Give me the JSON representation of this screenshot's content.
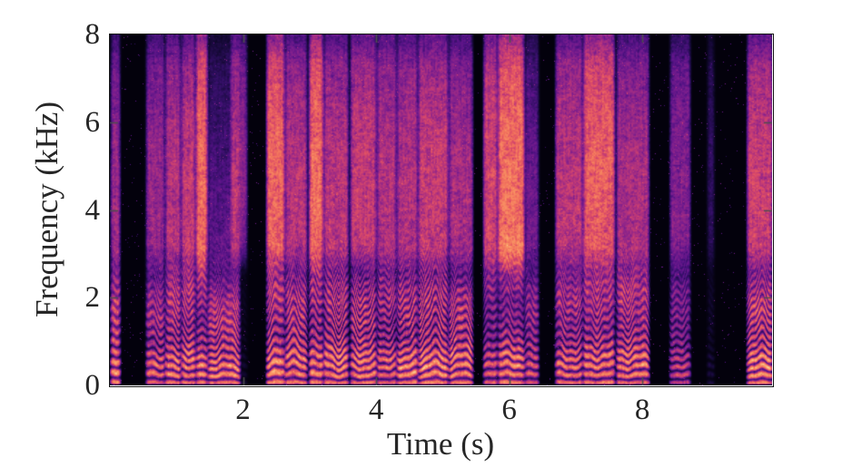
{
  "chart_data": {
    "type": "heatmap",
    "subtype": "speech-spectrogram",
    "title": "",
    "xlabel": "Time (s)",
    "ylabel": "Frequency (kHz)",
    "xlim": [
      0,
      9.95
    ],
    "ylim": [
      0,
      8
    ],
    "x_ticks": [
      2,
      4,
      6,
      8
    ],
    "y_ticks": [
      0,
      2,
      4,
      6,
      8
    ],
    "x_unit": "s",
    "y_unit": "kHz",
    "grid": false,
    "legend": null,
    "colormap": "magma",
    "colormap_stops": [
      [
        0.0,
        "#000004"
      ],
      [
        0.1,
        "#10072e"
      ],
      [
        0.2,
        "#2f0e61"
      ],
      [
        0.3,
        "#541285"
      ],
      [
        0.4,
        "#771c8d"
      ],
      [
        0.5,
        "#982886"
      ],
      [
        0.6,
        "#bc3778"
      ],
      [
        0.7,
        "#dc4c66"
      ],
      [
        0.8,
        "#f1705c"
      ],
      [
        0.9,
        "#fa9c65"
      ],
      [
        1.0,
        "#fcfdbf"
      ]
    ],
    "axis_color": "#262626",
    "tick_color": "#4d4d4d",
    "background": "#ffffff",
    "noise_seed": 7,
    "segments": [
      {
        "t0": 0.02,
        "t1": 0.15,
        "amp": 1.0,
        "voiced": 1.0,
        "hf": 0.35,
        "f0": 230,
        "chev": 0.2,
        "f1": 0.4,
        "f2": 1.8,
        "hx": 3.5,
        "ph": 0.3
      },
      {
        "t0": 0.55,
        "t1": 0.82,
        "amp": 0.78,
        "voiced": 0.9,
        "hf": 0.45,
        "f0": 210,
        "chev": 0.5,
        "f1": 0.5,
        "f2": 1.7,
        "hx": 3.5,
        "ph": 1.1
      },
      {
        "t0": 0.84,
        "t1": 1.06,
        "amp": 0.92,
        "voiced": 1.0,
        "hf": 0.5,
        "f0": 200,
        "chev": 0.6,
        "f1": 0.5,
        "f2": 2.0,
        "hx": 4.0,
        "ph": 2.0
      },
      {
        "t0": 1.08,
        "t1": 1.28,
        "amp": 0.95,
        "voiced": 1.0,
        "hf": 0.55,
        "f0": 195,
        "chev": 0.5,
        "f1": 0.6,
        "f2": 2.2,
        "hx": 4.0,
        "ph": 2.7
      },
      {
        "t0": 1.3,
        "t1": 1.46,
        "amp": 1.0,
        "voiced": 0.9,
        "hf": 0.9,
        "f0": 210,
        "chev": 0.3,
        "f1": 0.5,
        "f2": 2.5,
        "hx": 4.0,
        "ph": 3.4
      },
      {
        "t0": 1.48,
        "t1": 1.95,
        "amp": 0.85,
        "voiced": 1.0,
        "hf": 0.15,
        "f0": 185,
        "chev": 0.7,
        "f1": 0.4,
        "f2": 1.6,
        "hx": 3.5,
        "ph": 4.1
      },
      {
        "t0": 1.82,
        "t1": 2.06,
        "amp": 0.42,
        "voiced": 0.1,
        "hf": 0.85,
        "f0": 200,
        "chev": 0.0,
        "f1": 0.5,
        "f2": 2.0,
        "hx": 3.0,
        "ph": 4.8
      },
      {
        "t0": 2.36,
        "t1": 2.62,
        "amp": 1.0,
        "voiced": 1.0,
        "hf": 0.85,
        "f0": 215,
        "chev": 0.8,
        "f1": 0.5,
        "f2": 2.2,
        "hx": 4.5,
        "ph": 5.5
      },
      {
        "t0": 2.64,
        "t1": 2.96,
        "amp": 0.92,
        "voiced": 1.0,
        "hf": 0.5,
        "f0": 200,
        "chev": 0.9,
        "f1": 0.6,
        "f2": 1.9,
        "hx": 4.5,
        "ph": 6.2
      },
      {
        "t0": 3.0,
        "t1": 3.2,
        "amp": 1.0,
        "voiced": 0.95,
        "hf": 0.95,
        "f0": 210,
        "chev": 0.4,
        "f1": 0.5,
        "f2": 2.3,
        "hx": 5.0,
        "ph": 0.9
      },
      {
        "t0": 3.22,
        "t1": 3.58,
        "amp": 0.95,
        "voiced": 1.0,
        "hf": 0.5,
        "f0": 195,
        "chev": 0.9,
        "f1": 0.6,
        "f2": 2.0,
        "hx": 5.5,
        "ph": 1.6
      },
      {
        "t0": 3.62,
        "t1": 4.0,
        "amp": 0.9,
        "voiced": 1.0,
        "hf": 0.6,
        "f0": 190,
        "chev": 0.7,
        "f1": 0.5,
        "f2": 1.8,
        "hx": 5.5,
        "ph": 2.3
      },
      {
        "t0": 4.02,
        "t1": 4.3,
        "amp": 0.85,
        "voiced": 0.9,
        "hf": 0.55,
        "f0": 200,
        "chev": 0.6,
        "f1": 0.6,
        "f2": 2.1,
        "hx": 5.0,
        "ph": 3.0
      },
      {
        "t0": 4.32,
        "t1": 4.62,
        "amp": 0.92,
        "voiced": 1.0,
        "hf": 0.5,
        "f0": 205,
        "chev": 0.7,
        "f1": 0.5,
        "f2": 1.9,
        "hx": 5.5,
        "ph": 3.7
      },
      {
        "t0": 4.64,
        "t1": 5.08,
        "amp": 1.0,
        "voiced": 1.0,
        "hf": 0.55,
        "f0": 195,
        "chev": 1.0,
        "f1": 0.5,
        "f2": 2.0,
        "hx": 6.0,
        "ph": 4.4
      },
      {
        "t0": 5.1,
        "t1": 5.45,
        "amp": 0.9,
        "voiced": 1.0,
        "hf": 0.45,
        "f0": 190,
        "chev": 0.8,
        "f1": 0.6,
        "f2": 1.7,
        "hx": 5.0,
        "ph": 5.1
      },
      {
        "t0": 5.62,
        "t1": 5.82,
        "amp": 0.85,
        "voiced": 0.8,
        "hf": 0.75,
        "f0": 205,
        "chev": 0.4,
        "f1": 0.5,
        "f2": 2.4,
        "hx": 4.0,
        "ph": 5.8
      },
      {
        "t0": 5.84,
        "t1": 6.22,
        "amp": 1.0,
        "voiced": 0.9,
        "hf": 0.95,
        "f0": 210,
        "chev": 0.5,
        "f1": 0.6,
        "f2": 2.8,
        "hx": 4.0,
        "ph": 6.5
      },
      {
        "t0": 6.24,
        "t1": 6.44,
        "amp": 0.7,
        "voiced": 0.9,
        "hf": 0.3,
        "f0": 195,
        "chev": 0.5,
        "f1": 0.5,
        "f2": 1.8,
        "hx": 3.5,
        "ph": 0.6
      },
      {
        "t0": 6.7,
        "t1": 7.1,
        "amp": 0.82,
        "voiced": 0.95,
        "hf": 0.6,
        "f0": 200,
        "chev": 0.6,
        "f1": 0.5,
        "f2": 2.0,
        "hx": 4.0,
        "ph": 1.3
      },
      {
        "t0": 7.12,
        "t1": 7.58,
        "amp": 0.95,
        "voiced": 0.95,
        "hf": 0.85,
        "f0": 205,
        "chev": 0.5,
        "f1": 0.6,
        "f2": 2.2,
        "hx": 4.0,
        "ph": 2.0
      },
      {
        "t0": 7.62,
        "t1": 8.1,
        "amp": 0.9,
        "voiced": 1.0,
        "hf": 0.45,
        "f0": 190,
        "chev": 0.6,
        "f1": 0.6,
        "f2": 2.1,
        "hx": 4.0,
        "ph": 2.7
      },
      {
        "t0": 8.42,
        "t1": 8.72,
        "amp": 0.62,
        "voiced": 0.8,
        "hf": 0.5,
        "f0": 195,
        "chev": 0.3,
        "f1": 0.5,
        "f2": 1.9,
        "hx": 3.5,
        "ph": 3.4
      },
      {
        "t0": 8.98,
        "t1": 9.08,
        "amp": 0.22,
        "voiced": 0.3,
        "hf": 0.55,
        "f0": 200,
        "chev": 0.0,
        "f1": 0.5,
        "f2": 2.0,
        "hx": 3.0,
        "ph": 4.1
      },
      {
        "t0": 9.58,
        "t1": 9.95,
        "amp": 1.0,
        "voiced": 1.0,
        "hf": 0.55,
        "f0": 180,
        "chev": 0.7,
        "f1": 0.5,
        "f2": 1.8,
        "hx": 4.5,
        "ph": 4.8
      }
    ]
  }
}
